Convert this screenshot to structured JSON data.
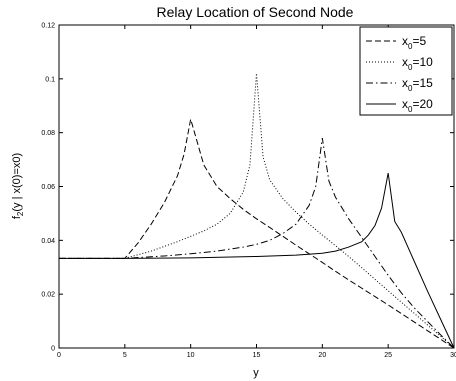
{
  "chart_data": {
    "type": "line",
    "title": "Relay Location of Second Node",
    "xlabel": "y",
    "ylabel_main": "f",
    "ylabel_sub": "2",
    "ylabel_rest": "(y | x(0)=x0)",
    "xlim": [
      0,
      30
    ],
    "ylim": [
      0,
      0.12
    ],
    "xticks": [
      "0",
      "5",
      "10",
      "15",
      "20",
      "25",
      "30"
    ],
    "yticks": [
      "0",
      "0.02",
      "0.04",
      "0.06",
      "0.08",
      "0.1",
      "0.12"
    ],
    "grid": false,
    "legend_position": "top-right",
    "series": [
      {
        "label_main": "x",
        "label_sub": "0",
        "label_rest": "=5",
        "style": "dashed",
        "x": [
          0,
          5,
          6,
          7,
          8,
          9,
          9.5,
          10,
          11,
          12,
          13,
          14,
          15,
          16,
          17,
          18,
          19,
          20,
          21,
          22,
          23,
          24,
          25,
          26,
          27,
          28,
          29,
          30
        ],
        "y": [
          0.0333,
          0.0333,
          0.039,
          0.046,
          0.054,
          0.064,
          0.072,
          0.085,
          0.068,
          0.06,
          0.0555,
          0.0515,
          0.048,
          0.0448,
          0.0415,
          0.0382,
          0.035,
          0.0318,
          0.0285,
          0.0253,
          0.0222,
          0.0191,
          0.016,
          0.0128,
          0.0096,
          0.0064,
          0.0032,
          0
        ]
      },
      {
        "label_main": "x",
        "label_sub": "0",
        "label_rest": "=10",
        "style": "dotted",
        "x": [
          0,
          5,
          7,
          9,
          10,
          11,
          12,
          13,
          14,
          14.5,
          15,
          15.5,
          16,
          17,
          18,
          19,
          20,
          21,
          22,
          23,
          24,
          25,
          26,
          27,
          28,
          29,
          30
        ],
        "y": [
          0.0333,
          0.0333,
          0.036,
          0.0395,
          0.0415,
          0.0435,
          0.046,
          0.05,
          0.058,
          0.068,
          0.102,
          0.071,
          0.0625,
          0.0555,
          0.0505,
          0.046,
          0.042,
          0.038,
          0.034,
          0.0298,
          0.0255,
          0.0213,
          0.017,
          0.0128,
          0.0085,
          0.0043,
          0
        ]
      },
      {
        "label_main": "x",
        "label_sub": "0",
        "label_rest": "=15",
        "style": "dashdot",
        "x": [
          0,
          5,
          8,
          10,
          12,
          14,
          15,
          16,
          17,
          18,
          19,
          19.5,
          20,
          20.5,
          21,
          22,
          23,
          24,
          25,
          26,
          27,
          28,
          29,
          30
        ],
        "y": [
          0.0333,
          0.0333,
          0.0342,
          0.035,
          0.036,
          0.0375,
          0.0385,
          0.04,
          0.0425,
          0.046,
          0.053,
          0.06,
          0.078,
          0.062,
          0.056,
          0.048,
          0.041,
          0.034,
          0.027,
          0.0205,
          0.0148,
          0.0098,
          0.0048,
          0
        ]
      },
      {
        "label_main": "x",
        "label_sub": "0",
        "label_rest": "=20",
        "style": "solid",
        "x": [
          0,
          5,
          10,
          15,
          18,
          20,
          21,
          22,
          23,
          23.5,
          24,
          24.5,
          25,
          25.5,
          26,
          27,
          28,
          29,
          30
        ],
        "y": [
          0.0333,
          0.0333,
          0.0335,
          0.034,
          0.0345,
          0.0352,
          0.036,
          0.0375,
          0.0395,
          0.042,
          0.0455,
          0.052,
          0.065,
          0.047,
          0.043,
          0.032,
          0.021,
          0.0105,
          0
        ]
      }
    ]
  }
}
